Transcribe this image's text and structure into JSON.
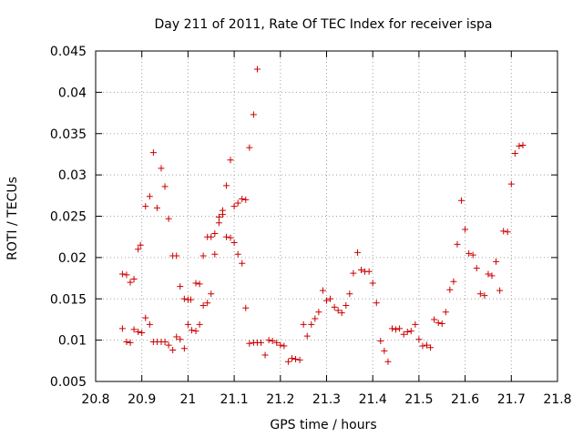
{
  "chart_data": {
    "type": "scatter",
    "title": "Day 211 of 2011, Rate Of TEC Index for receiver ispa",
    "xlabel": "GPS time / hours",
    "ylabel": "ROTI / TECUs",
    "xlim": [
      20.8,
      21.8
    ],
    "ylim": [
      0.005,
      0.045
    ],
    "xticks": [
      20.8,
      20.9,
      21.0,
      21.1,
      21.2,
      21.3,
      21.4,
      21.5,
      21.6,
      21.7,
      21.8
    ],
    "xtick_labels": [
      "20.8",
      "20.9",
      "21",
      "21.1",
      "21.2",
      "21.3",
      "21.4",
      "21.5",
      "21.6",
      "21.7",
      "21.8"
    ],
    "yticks": [
      0.005,
      0.01,
      0.015,
      0.02,
      0.025,
      0.03,
      0.035,
      0.04,
      0.045
    ],
    "ytick_labels": [
      "0.005",
      "0.01",
      "0.015",
      "0.02",
      "0.025",
      "0.03",
      "0.035",
      "0.04",
      "0.045"
    ],
    "grid": true,
    "marker": "+",
    "marker_color": "#cc0000",
    "series": [
      {
        "name": "ROTI",
        "points": [
          [
            20.858,
            0.0114
          ],
          [
            20.858,
            0.018
          ],
          [
            20.867,
            0.0179
          ],
          [
            20.867,
            0.0098
          ],
          [
            20.875,
            0.0097
          ],
          [
            20.875,
            0.017
          ],
          [
            20.883,
            0.0174
          ],
          [
            20.883,
            0.0113
          ],
          [
            20.892,
            0.021
          ],
          [
            20.892,
            0.011
          ],
          [
            20.897,
            0.0215
          ],
          [
            20.9,
            0.0109
          ],
          [
            20.908,
            0.0127
          ],
          [
            20.908,
            0.0262
          ],
          [
            20.917,
            0.0274
          ],
          [
            20.917,
            0.0119
          ],
          [
            20.925,
            0.0327
          ],
          [
            20.925,
            0.0098
          ],
          [
            20.933,
            0.0098
          ],
          [
            20.933,
            0.026
          ],
          [
            20.942,
            0.0308
          ],
          [
            20.942,
            0.0098
          ],
          [
            20.95,
            0.0286
          ],
          [
            20.95,
            0.0098
          ],
          [
            20.958,
            0.0247
          ],
          [
            20.958,
            0.0094
          ],
          [
            20.967,
            0.0202
          ],
          [
            20.967,
            0.0088
          ],
          [
            20.975,
            0.0202
          ],
          [
            20.975,
            0.0104
          ],
          [
            20.983,
            0.0165
          ],
          [
            20.983,
            0.0101
          ],
          [
            20.992,
            0.015
          ],
          [
            20.992,
            0.009
          ],
          [
            21.0,
            0.0119
          ],
          [
            21.0,
            0.0149
          ],
          [
            21.006,
            0.0149
          ],
          [
            21.008,
            0.0112
          ],
          [
            21.017,
            0.0169
          ],
          [
            21.017,
            0.0111
          ],
          [
            21.025,
            0.0119
          ],
          [
            21.025,
            0.0168
          ],
          [
            21.033,
            0.0202
          ],
          [
            21.033,
            0.0142
          ],
          [
            21.042,
            0.0145
          ],
          [
            21.042,
            0.0225
          ],
          [
            21.05,
            0.0156
          ],
          [
            21.05,
            0.0225
          ],
          [
            21.058,
            0.0229
          ],
          [
            21.058,
            0.0204
          ],
          [
            21.067,
            0.0242
          ],
          [
            21.067,
            0.0249
          ],
          [
            21.075,
            0.0257
          ],
          [
            21.075,
            0.0252
          ],
          [
            21.083,
            0.0287
          ],
          [
            21.083,
            0.0225
          ],
          [
            21.092,
            0.0318
          ],
          [
            21.092,
            0.0224
          ],
          [
            21.1,
            0.0262
          ],
          [
            21.1,
            0.0218
          ],
          [
            21.108,
            0.0266
          ],
          [
            21.108,
            0.0204
          ],
          [
            21.117,
            0.0271
          ],
          [
            21.117,
            0.0193
          ],
          [
            21.125,
            0.027
          ],
          [
            21.125,
            0.0139
          ],
          [
            21.133,
            0.0333
          ],
          [
            21.133,
            0.0096
          ],
          [
            21.142,
            0.0373
          ],
          [
            21.142,
            0.0097
          ],
          [
            21.15,
            0.0428
          ],
          [
            21.15,
            0.0097
          ],
          [
            21.158,
            0.0097
          ],
          [
            21.167,
            0.0082
          ],
          [
            21.175,
            0.01
          ],
          [
            21.183,
            0.0099
          ],
          [
            21.192,
            0.0097
          ],
          [
            21.2,
            0.0094
          ],
          [
            21.208,
            0.0093
          ],
          [
            21.217,
            0.0074
          ],
          [
            21.225,
            0.0078
          ],
          [
            21.233,
            0.0077
          ],
          [
            21.242,
            0.0076
          ],
          [
            21.25,
            0.0119
          ],
          [
            21.258,
            0.0105
          ],
          [
            21.267,
            0.0119
          ],
          [
            21.275,
            0.0126
          ],
          [
            21.283,
            0.0134
          ],
          [
            21.292,
            0.016
          ],
          [
            21.3,
            0.0148
          ],
          [
            21.308,
            0.015
          ],
          [
            21.317,
            0.014
          ],
          [
            21.325,
            0.0136
          ],
          [
            21.333,
            0.0133
          ],
          [
            21.342,
            0.0142
          ],
          [
            21.35,
            0.0156
          ],
          [
            21.358,
            0.0181
          ],
          [
            21.367,
            0.0206
          ],
          [
            21.375,
            0.0185
          ],
          [
            21.383,
            0.0183
          ],
          [
            21.392,
            0.0183
          ],
          [
            21.4,
            0.0169
          ],
          [
            21.408,
            0.0145
          ],
          [
            21.417,
            0.0099
          ],
          [
            21.425,
            0.0087
          ],
          [
            21.433,
            0.0074
          ],
          [
            21.442,
            0.0114
          ],
          [
            21.45,
            0.0113
          ],
          [
            21.458,
            0.0114
          ],
          [
            21.467,
            0.0107
          ],
          [
            21.475,
            0.011
          ],
          [
            21.483,
            0.0111
          ],
          [
            21.492,
            0.0119
          ],
          [
            21.5,
            0.0101
          ],
          [
            21.508,
            0.0093
          ],
          [
            21.517,
            0.0094
          ],
          [
            21.525,
            0.0091
          ],
          [
            21.533,
            0.0125
          ],
          [
            21.542,
            0.0121
          ],
          [
            21.55,
            0.012
          ],
          [
            21.558,
            0.0134
          ],
          [
            21.567,
            0.0161
          ],
          [
            21.575,
            0.0171
          ],
          [
            21.583,
            0.0216
          ],
          [
            21.592,
            0.0269
          ],
          [
            21.6,
            0.0234
          ],
          [
            21.608,
            0.0205
          ],
          [
            21.617,
            0.0203
          ],
          [
            21.625,
            0.0187
          ],
          [
            21.633,
            0.0156
          ],
          [
            21.642,
            0.0154
          ],
          [
            21.65,
            0.018
          ],
          [
            21.658,
            0.0178
          ],
          [
            21.667,
            0.0195
          ],
          [
            21.675,
            0.016
          ],
          [
            21.683,
            0.0232
          ],
          [
            21.692,
            0.0231
          ],
          [
            21.7,
            0.0289
          ],
          [
            21.708,
            0.0326
          ],
          [
            21.717,
            0.0335
          ],
          [
            21.725,
            0.0336
          ]
        ]
      }
    ]
  }
}
